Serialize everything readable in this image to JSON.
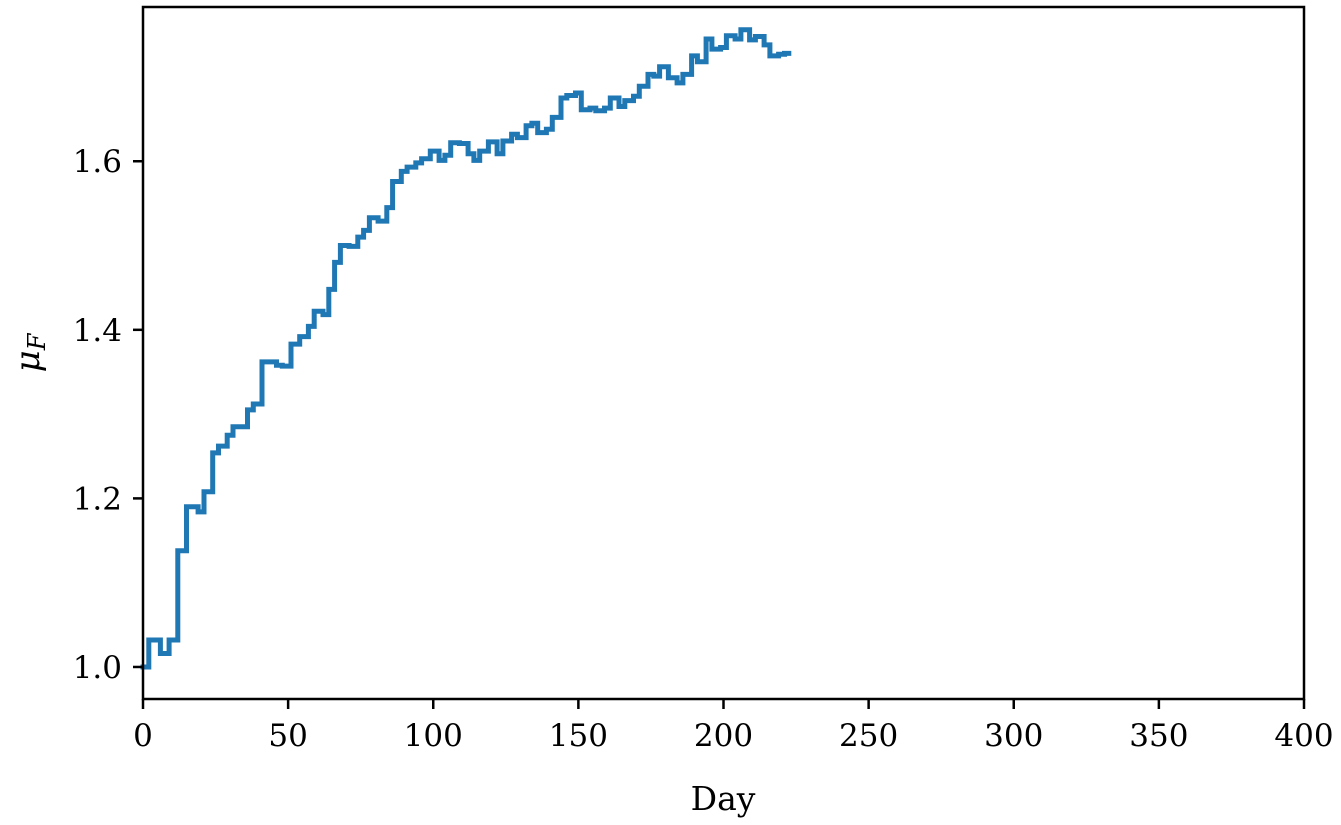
{
  "chart_data": {
    "type": "line",
    "step": true,
    "title": "",
    "xlabel": "Day",
    "ylabel": "μ",
    "ylabel_subscript": "F",
    "xlim": [
      0,
      400
    ],
    "ylim": [
      0.962,
      1.783
    ],
    "xticks": [
      0,
      50,
      100,
      150,
      200,
      250,
      300,
      350,
      400
    ],
    "xtick_labels": [
      "0",
      "50",
      "100",
      "150",
      "200",
      "250",
      "300",
      "350",
      "400"
    ],
    "yticks": [
      1.0,
      1.2,
      1.4,
      1.6
    ],
    "ytick_labels": [
      "1.0",
      "1.2",
      "1.4",
      "1.6"
    ],
    "grid": false,
    "legend": "none",
    "series": [
      {
        "color": "#1f77b4",
        "x": [
          0,
          2,
          6,
          9,
          12,
          15,
          19,
          21,
          24,
          26,
          29,
          31,
          36,
          38,
          41,
          46,
          48,
          51,
          54,
          57,
          59,
          62,
          64,
          66,
          68,
          71,
          74,
          76,
          78,
          81,
          84,
          86,
          89,
          91,
          94,
          96,
          99,
          102,
          104,
          106,
          109,
          112,
          114,
          116,
          119,
          122,
          124,
          127,
          129,
          132,
          134,
          136,
          139,
          141,
          144,
          146,
          149,
          151,
          154,
          156,
          159,
          161,
          164,
          166,
          169,
          171,
          174,
          176,
          178,
          181,
          184,
          186,
          189,
          191,
          194,
          196,
          199,
          201,
          204,
          206,
          209,
          211,
          214,
          216,
          219,
          221
        ],
        "y": [
          1.0,
          1.032,
          1.016,
          1.032,
          1.138,
          1.19,
          1.184,
          1.208,
          1.254,
          1.262,
          1.275,
          1.285,
          1.305,
          1.312,
          1.362,
          1.358,
          1.357,
          1.383,
          1.392,
          1.404,
          1.422,
          1.418,
          1.448,
          1.48,
          1.5,
          1.499,
          1.51,
          1.518,
          1.533,
          1.529,
          1.545,
          1.576,
          1.588,
          1.593,
          1.598,
          1.603,
          1.612,
          1.601,
          1.607,
          1.622,
          1.621,
          1.609,
          1.601,
          1.612,
          1.623,
          1.609,
          1.624,
          1.632,
          1.628,
          1.642,
          1.645,
          1.634,
          1.638,
          1.652,
          1.675,
          1.678,
          1.681,
          1.661,
          1.663,
          1.66,
          1.663,
          1.675,
          1.665,
          1.672,
          1.677,
          1.689,
          1.703,
          1.701,
          1.712,
          1.699,
          1.693,
          1.703,
          1.725,
          1.718,
          1.745,
          1.733,
          1.735,
          1.749,
          1.745,
          1.756,
          1.744,
          1.748,
          1.738,
          1.725,
          1.727,
          1.728
        ]
      }
    ]
  }
}
